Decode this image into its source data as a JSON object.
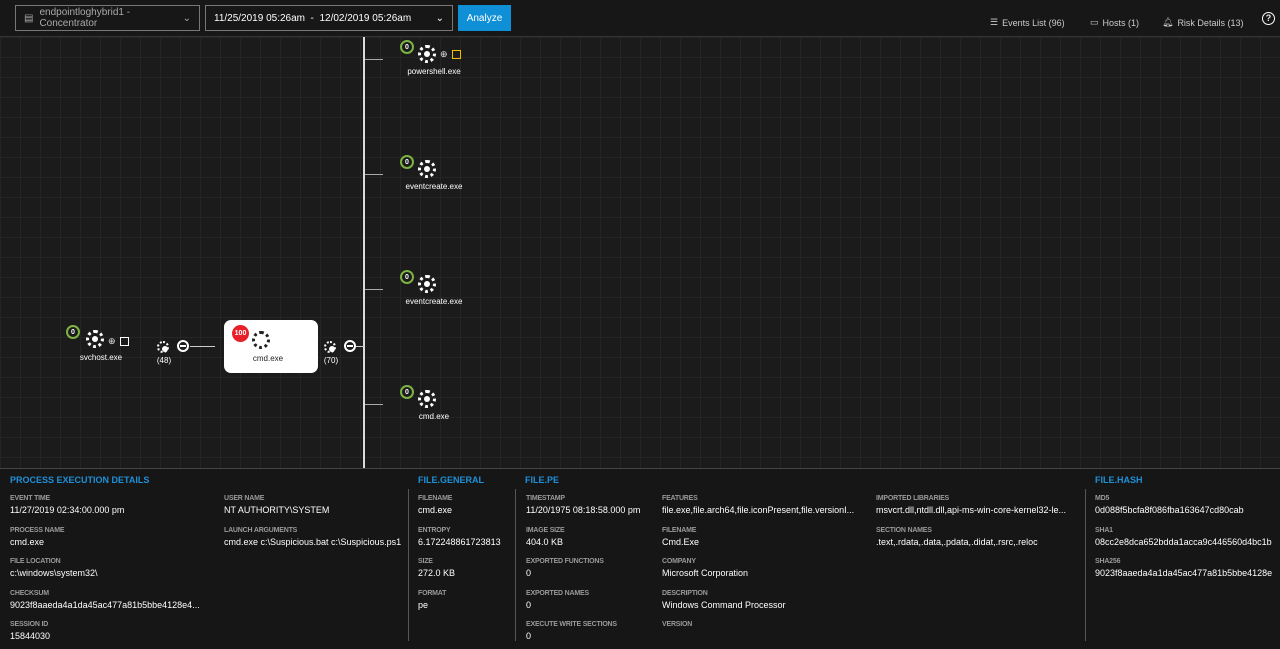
{
  "header": {
    "source": "endpointloghybrid1 - Concentrator",
    "date_range": "11/25/2019 05:26am  -  12/02/2019 05:26am",
    "analyze": "Analyze",
    "events_list": "Events List (96)",
    "hosts": "Hosts (1)",
    "risk_details": "Risk Details (13)"
  },
  "graph": {
    "parent": {
      "name": "svchost.exe",
      "score": "0"
    },
    "left_count": "(48)",
    "selected": {
      "name": "cmd.exe",
      "score": "100"
    },
    "right_count": "(70)",
    "children": [
      {
        "name": "powershell.exe",
        "score": "0"
      },
      {
        "name": "eventcreate.exe",
        "score": "0"
      },
      {
        "name": "eventcreate.exe",
        "score": "0"
      },
      {
        "name": "cmd.exe",
        "score": "0"
      }
    ],
    "colors": {
      "safe": "#7cb342",
      "risk": "#e8202a",
      "accent": "#0f8fd6"
    }
  },
  "details": {
    "process": {
      "title": "PROCESS EXECUTION DETAILS",
      "fields": [
        {
          "k": "EVENT TIME",
          "v": "11/27/2019 02:34:00.000 pm"
        },
        {
          "k": "PROCESS NAME",
          "v": "cmd.exe"
        },
        {
          "k": "FILE LOCATION",
          "v": "c:\\windows\\system32\\"
        },
        {
          "k": "CHECKSUM",
          "v": "9023f8aaeda4a1da45ac477a81b5bbe4128e4..."
        },
        {
          "k": "SESSION ID",
          "v": "15844030"
        },
        {
          "k": "USER NAME",
          "v": "NT AUTHORITY\\SYSTEM"
        },
        {
          "k": "LAUNCH ARGUMENTS",
          "v": "cmd.exe c:\\Suspicious.bat c:\\Suspicious.ps1"
        }
      ]
    },
    "general": {
      "title": "FILE.GENERAL",
      "fields": [
        {
          "k": "FILENAME",
          "v": "cmd.exe"
        },
        {
          "k": "ENTROPY",
          "v": "6.172248861723813"
        },
        {
          "k": "SIZE",
          "v": "272.0 KB"
        },
        {
          "k": "FORMAT",
          "v": "pe"
        }
      ]
    },
    "pe": {
      "title": "FILE.PE",
      "fields": [
        {
          "k": "TIMESTAMP",
          "v": "11/20/1975 08:18:58.000 pm"
        },
        {
          "k": "IMAGE SIZE",
          "v": "404.0 KB"
        },
        {
          "k": "EXPORTED FUNCTIONS",
          "v": "0"
        },
        {
          "k": "EXPORTED NAMES",
          "v": "0"
        },
        {
          "k": "EXECUTE WRITE SECTIONS",
          "v": "0"
        },
        {
          "k": "FEATURES",
          "v": "file.exe,file.arch64,file.iconPresent,file.versionI..."
        },
        {
          "k": "FILENAME",
          "v": "Cmd.Exe"
        },
        {
          "k": "COMPANY",
          "v": "Microsoft Corporation"
        },
        {
          "k": "DESCRIPTION",
          "v": "Windows Command Processor"
        },
        {
          "k": "VERSION",
          "v": ""
        },
        {
          "k": "IMPORTED LIBRARIES",
          "v": "msvcrt.dll,ntdll.dll,api-ms-win-core-kernel32-le..."
        },
        {
          "k": "SECTION NAMES",
          "v": ".text,.rdata,.data,.pdata,.didat,.rsrc,.reloc"
        }
      ]
    },
    "hash": {
      "title": "FILE.HASH",
      "fields": [
        {
          "k": "MD5",
          "v": "0d088f5bcfa8f086fba163647cd80cab"
        },
        {
          "k": "SHA1",
          "v": "08cc2e8dca652bdda1acca9c446560d4bc1b"
        },
        {
          "k": "SHA256",
          "v": "9023f8aaeda4a1da45ac477a81b5bbe4128e"
        }
      ]
    }
  }
}
